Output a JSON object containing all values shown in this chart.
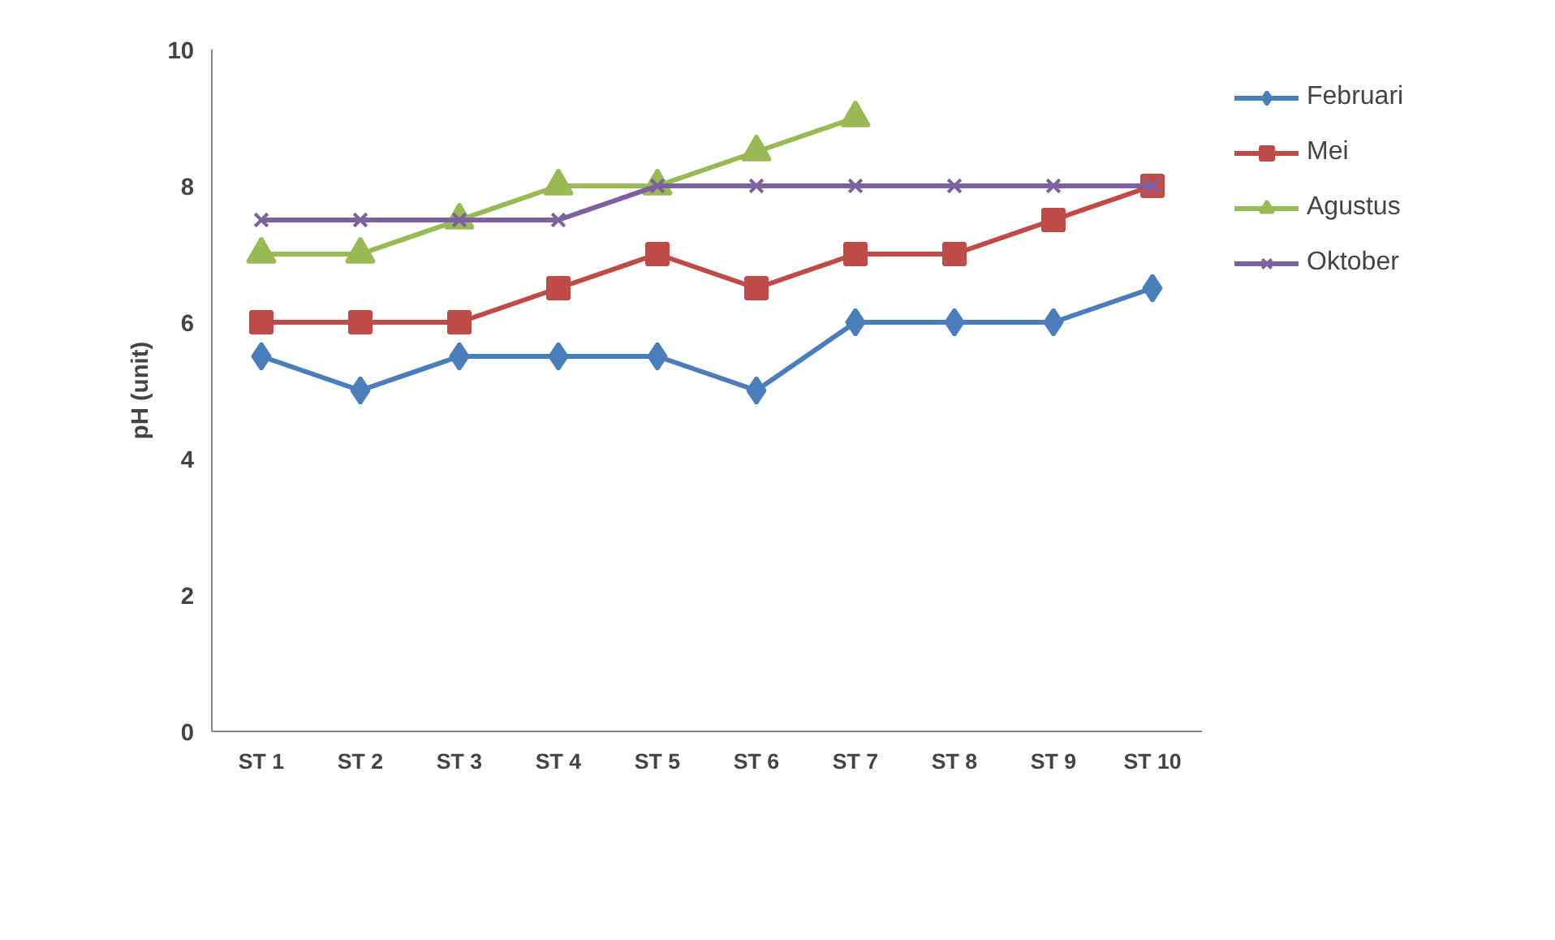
{
  "chart_data": {
    "type": "line",
    "ylabel": "pH (unit)",
    "categories": [
      "ST 1",
      "ST 2",
      "ST 3",
      "ST 4",
      "ST 5",
      "ST 6",
      "ST 7",
      "ST 8",
      "ST 9",
      "ST 10"
    ],
    "ylim": [
      0,
      10
    ],
    "yticks": [
      0,
      2,
      4,
      6,
      8,
      10
    ],
    "grid": false,
    "legend": "right",
    "line_style": "solid",
    "series": [
      {
        "name": "Februari",
        "color": "#4a7ebb",
        "marker": "diamond",
        "values": [
          5.5,
          5,
          5.5,
          5.5,
          5.5,
          5,
          6,
          6,
          6,
          6.5
        ]
      },
      {
        "name": "Mei",
        "color": "#be4b48",
        "marker": "square",
        "values": [
          6,
          6,
          6,
          6.5,
          7,
          6.5,
          7,
          7,
          7.5,
          8
        ]
      },
      {
        "name": "Agustus",
        "color": "#98b954",
        "marker": "triangle",
        "values": [
          7,
          7,
          7.5,
          8,
          8,
          8.5,
          9,
          null,
          null,
          null
        ]
      },
      {
        "name": "Oktober",
        "color": "#7d60a0",
        "marker": "cross",
        "values": [
          7.5,
          7.5,
          7.5,
          7.5,
          8,
          8,
          8,
          8,
          8,
          8
        ]
      }
    ]
  }
}
